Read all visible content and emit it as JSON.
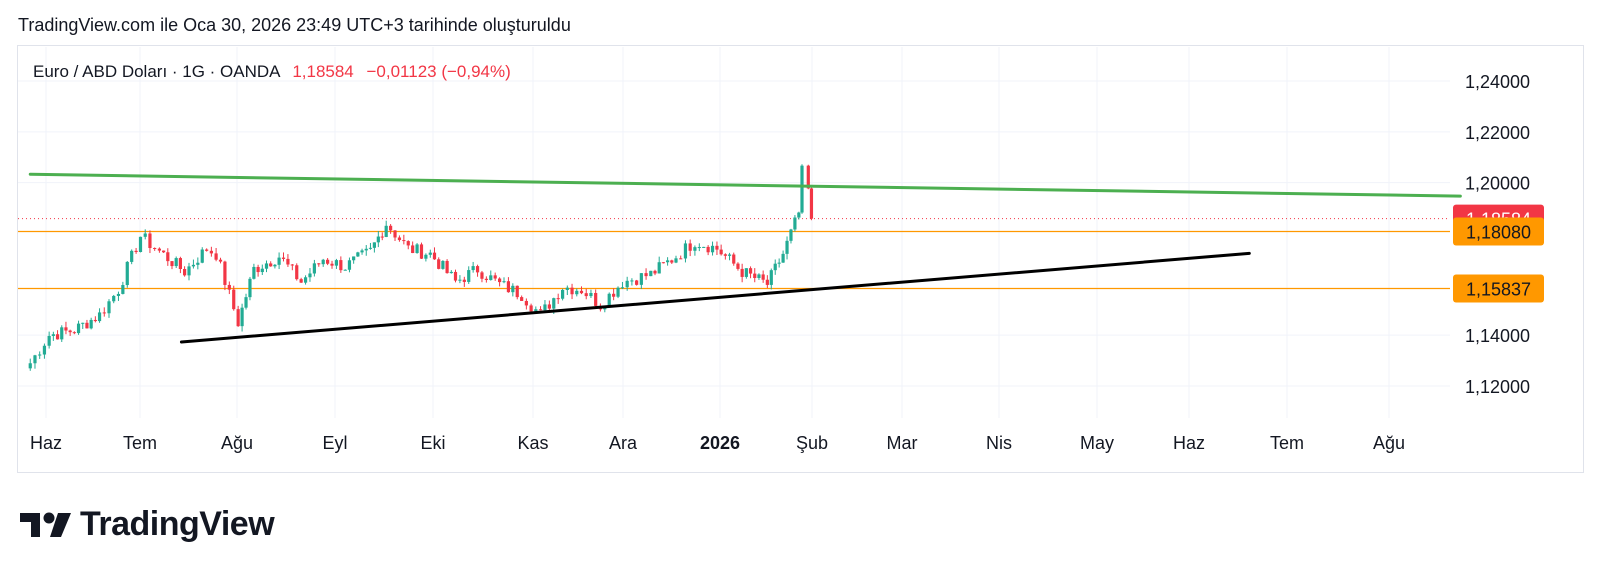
{
  "caption": "TradingView.com ile Oca 30, 2026 23:49 UTC+3 tarihinde oluşturuldu",
  "legend": {
    "symbol": "Euro / ABD Doları · 1G · OANDA",
    "last": "1,18584",
    "change": "−0,01123 (−0,94%)"
  },
  "brand": {
    "name": "TradingView",
    "icon": "tradingview-logo-icon"
  },
  "colors": {
    "up": "#22ab94",
    "down": "#f23645",
    "upper_trend": "#4caf50",
    "lower_trend": "#000000",
    "level": "#ff9800",
    "last_badge": "#f23645"
  },
  "chart_data": {
    "type": "candlestick",
    "symbol": "EURUSD",
    "interval": "1D",
    "y_axis": {
      "side": "right",
      "ticks": [
        "1,24000",
        "1,22000",
        "1,20000",
        "1,14000",
        "1,12000"
      ]
    },
    "x_axis": {
      "ticks": [
        "Haz",
        "Tem",
        "Ağu",
        "Eyl",
        "Eki",
        "Kas",
        "Ara",
        "2026",
        "Şub",
        "Mar",
        "Nis",
        "May",
        "Haz",
        "Tem",
        "Ağu"
      ]
    },
    "price_labels": [
      {
        "label": "1,18584",
        "value": 1.18584,
        "kind": "last"
      },
      {
        "label": "1,18080",
        "value": 1.1808,
        "kind": "level"
      },
      {
        "label": "1,15837",
        "value": 1.15837,
        "kind": "level"
      }
    ],
    "trendlines": [
      {
        "name": "upper",
        "from": {
          "date": "2025-05-27",
          "value": 1.2033
        },
        "to": {
          "date": "2026-08-24",
          "value": 1.1947
        }
      },
      {
        "name": "lower",
        "from": {
          "date": "2025-07-14",
          "value": 1.1373
        },
        "to": {
          "date": "2026-06-18",
          "value": 1.1722
        }
      }
    ],
    "price_path": [
      [
        "2025-05-27",
        1.129
      ],
      [
        "2025-06-02",
        1.14
      ],
      [
        "2025-06-10",
        1.142
      ],
      [
        "2025-06-18",
        1.148
      ],
      [
        "2025-06-24",
        1.158
      ],
      [
        "2025-07-01",
        1.179
      ],
      [
        "2025-07-07",
        1.173
      ],
      [
        "2025-07-15",
        1.165
      ],
      [
        "2025-07-22",
        1.174
      ],
      [
        "2025-07-25",
        1.172
      ],
      [
        "2025-08-01",
        1.145
      ],
      [
        "2025-08-06",
        1.166
      ],
      [
        "2025-08-14",
        1.171
      ],
      [
        "2025-08-21",
        1.161
      ],
      [
        "2025-08-28",
        1.17
      ],
      [
        "2025-09-04",
        1.167
      ],
      [
        "2025-09-12",
        1.173
      ],
      [
        "2025-09-17",
        1.184
      ],
      [
        "2025-09-24",
        1.174
      ],
      [
        "2025-10-01",
        1.172
      ],
      [
        "2025-10-09",
        1.161
      ],
      [
        "2025-10-16",
        1.166
      ],
      [
        "2025-10-23",
        1.16
      ],
      [
        "2025-10-30",
        1.156
      ],
      [
        "2025-11-05",
        1.148
      ],
      [
        "2025-11-12",
        1.159
      ],
      [
        "2025-11-18",
        1.158
      ],
      [
        "2025-11-24",
        1.152
      ],
      [
        "2025-12-01",
        1.161
      ],
      [
        "2025-12-10",
        1.164
      ],
      [
        "2025-12-18",
        1.171
      ],
      [
        "2025-12-24",
        1.177
      ],
      [
        "2025-12-31",
        1.174
      ],
      [
        "2026-01-08",
        1.165
      ],
      [
        "2026-01-16",
        1.16
      ],
      [
        "2026-01-21",
        1.172
      ],
      [
        "2026-01-26",
        1.188
      ],
      [
        "2026-01-27",
        1.204
      ],
      [
        "2026-01-29",
        1.197
      ],
      [
        "2026-01-30",
        1.18584
      ]
    ]
  }
}
